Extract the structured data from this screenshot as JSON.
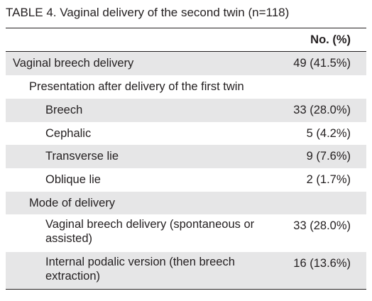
{
  "caption": {
    "label": "TABLE 4.",
    "title": "Vaginal delivery of the second twin (n=118)"
  },
  "table": {
    "column_header": "No. (%)",
    "rows": [
      {
        "label": "Vaginal breech delivery",
        "value": "49 (41.5%)",
        "level": 0,
        "shaded": true
      },
      {
        "label": "Presentation after delivery of the first twin",
        "value": "",
        "level": 1,
        "shaded": false
      },
      {
        "label": "Breech",
        "value": "33 (28.0%)",
        "level": 2,
        "shaded": true
      },
      {
        "label": "Cephalic",
        "value": "5 (4.2%)",
        "level": 2,
        "shaded": false
      },
      {
        "label": "Transverse lie",
        "value": "9 (7.6%)",
        "level": 2,
        "shaded": true
      },
      {
        "label": "Oblique lie",
        "value": "2 (1.7%)",
        "level": 2,
        "shaded": false
      },
      {
        "label": "Mode of delivery",
        "value": "",
        "level": 1,
        "shaded": true
      },
      {
        "label": "Vaginal breech delivery (spontaneous or assisted)",
        "value": "33 (28.0%)",
        "level": 2,
        "shaded": false
      },
      {
        "label": "Internal podalic version (then breech extraction)",
        "value": "16 (13.6%)",
        "level": 2,
        "shaded": true
      }
    ]
  }
}
